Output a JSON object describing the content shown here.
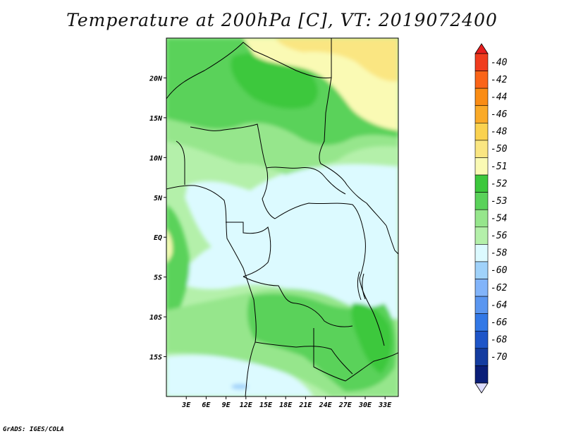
{
  "title": "Temperature at 200hPa [C], VT: 2019072400",
  "credit": "GrADS: IGES/COLA",
  "map": {
    "lon_range": [
      0,
      35
    ],
    "lat_range": [
      -20,
      25
    ],
    "lon_ticks": [
      {
        "lon": 3,
        "label": "3E"
      },
      {
        "lon": 6,
        "label": "6E"
      },
      {
        "lon": 9,
        "label": "9E"
      },
      {
        "lon": 12,
        "label": "12E"
      },
      {
        "lon": 15,
        "label": "15E"
      },
      {
        "lon": 18,
        "label": "18E"
      },
      {
        "lon": 21,
        "label": "21E"
      },
      {
        "lon": 24,
        "label": "24E"
      },
      {
        "lon": 27,
        "label": "27E"
      },
      {
        "lon": 30,
        "label": "30E"
      },
      {
        "lon": 33,
        "label": "33E"
      }
    ],
    "lat_ticks": [
      {
        "lat": 20,
        "label": "20N"
      },
      {
        "lat": 15,
        "label": "15N"
      },
      {
        "lat": 10,
        "label": "10N"
      },
      {
        "lat": 5,
        "label": "5N"
      },
      {
        "lat": 0,
        "label": "EQ"
      },
      {
        "lat": -5,
        "label": "5S"
      },
      {
        "lat": -10,
        "label": "10S"
      },
      {
        "lat": -15,
        "label": "15S"
      }
    ]
  },
  "colorbar": {
    "labels": [
      "-40",
      "-42",
      "-44",
      "-46",
      "-48",
      "-50",
      "-51",
      "-52",
      "-53",
      "-54",
      "-56",
      "-58",
      "-60",
      "-62",
      "-64",
      "-66",
      "-68",
      "-70"
    ],
    "colors": [
      "#f03c1e",
      "#fa6418",
      "#fa8c14",
      "#faaa28",
      "#fad250",
      "#fae682",
      "#fafab4",
      "#3cc83c",
      "#5ad25a",
      "#96e68c",
      "#b4f0aa",
      "#dcfaff",
      "#a0d2fa",
      "#82b4fa",
      "#5a96f0",
      "#3278e6",
      "#1e55c8",
      "#143ca0",
      "#0a1e78"
    ],
    "arrow_top_color": "#e61e1e",
    "arrow_bottom_color": "#dcdcff"
  }
}
